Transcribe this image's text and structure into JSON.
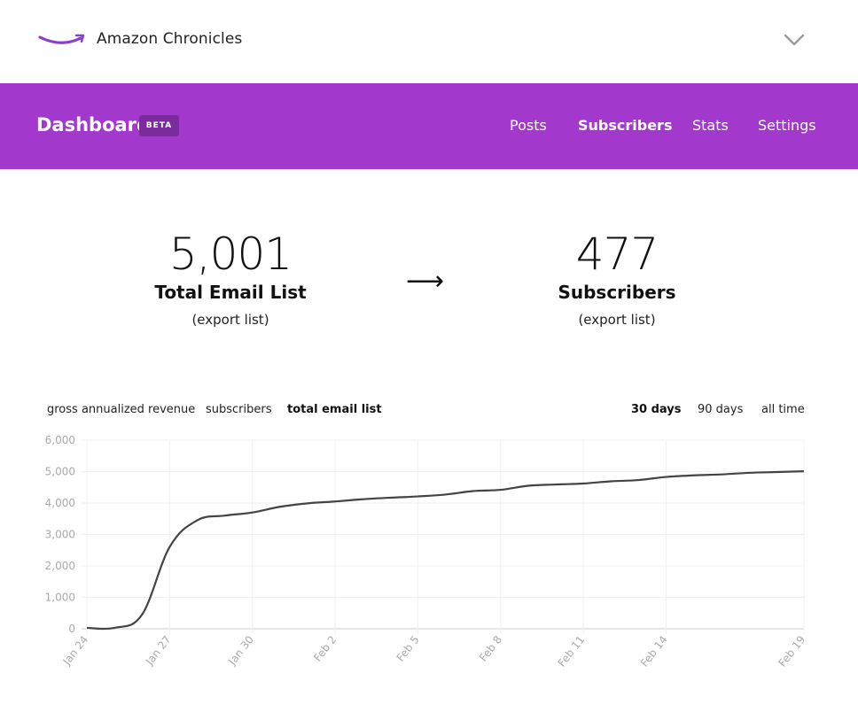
{
  "topbar": {
    "site_name": "Amazon Chronicles",
    "logo_icon": "amazon-smile-logo",
    "menu_icon": "chevron-down-icon"
  },
  "nav": {
    "title": "Dashboard",
    "badge": "BETA",
    "background": "#a238cc",
    "links": [
      {
        "label": "Posts",
        "active": false
      },
      {
        "label": "Subscribers",
        "active": true
      },
      {
        "label": "Stats",
        "active": false
      },
      {
        "label": "Settings",
        "active": false
      }
    ]
  },
  "stats": {
    "total": {
      "value": "5,001",
      "label": "Total Email List",
      "export": "(export list)"
    },
    "arrow": "⟶",
    "subscribers": {
      "value": "477",
      "label": "Subscribers",
      "export": "(export list)"
    }
  },
  "chart_tabs": {
    "metrics": [
      {
        "label": "gross annualized revenue",
        "active": false
      },
      {
        "label": "subscribers",
        "active": false
      },
      {
        "label": "total email list",
        "active": true
      }
    ],
    "ranges": [
      {
        "label": "30 days",
        "active": true
      },
      {
        "label": "90 days",
        "active": false
      },
      {
        "label": "all time",
        "active": false
      }
    ]
  },
  "chart_data": {
    "type": "line",
    "title": "",
    "xlabel": "",
    "ylabel": "",
    "ylim": [
      0,
      6000
    ],
    "yticks": [
      "0",
      "1,000",
      "2,000",
      "3,000",
      "4,000",
      "5,000",
      "6,000"
    ],
    "xticks": [
      "Jan 24",
      "Jan 27",
      "Jan 30",
      "Feb 2",
      "Feb 5",
      "Feb 8",
      "Feb 11",
      "Feb 14",
      "Feb 19"
    ],
    "grid": true,
    "line_color": "#444444",
    "points": [
      [
        "Jan 24",
        30
      ],
      [
        "Jan 25",
        30
      ],
      [
        "Jan 26",
        450
      ],
      [
        "Jan 27",
        2600
      ],
      [
        "Jan 28",
        3450
      ],
      [
        "Jan 29",
        3600
      ],
      [
        "Jan 30",
        3700
      ],
      [
        "Jan 31",
        3880
      ],
      [
        "Feb 1",
        3990
      ],
      [
        "Feb 2",
        4050
      ],
      [
        "Feb 3",
        4120
      ],
      [
        "Feb 4",
        4170
      ],
      [
        "Feb 5",
        4210
      ],
      [
        "Feb 6",
        4270
      ],
      [
        "Feb 7",
        4380
      ],
      [
        "Feb 8",
        4420
      ],
      [
        "Feb 9",
        4550
      ],
      [
        "Feb 10",
        4590
      ],
      [
        "Feb 11",
        4620
      ],
      [
        "Feb 12",
        4690
      ],
      [
        "Feb 13",
        4730
      ],
      [
        "Feb 14",
        4830
      ],
      [
        "Feb 15",
        4880
      ],
      [
        "Feb 16",
        4910
      ],
      [
        "Feb 17",
        4960
      ],
      [
        "Feb 18",
        4985
      ],
      [
        "Feb 19",
        5010
      ]
    ]
  }
}
